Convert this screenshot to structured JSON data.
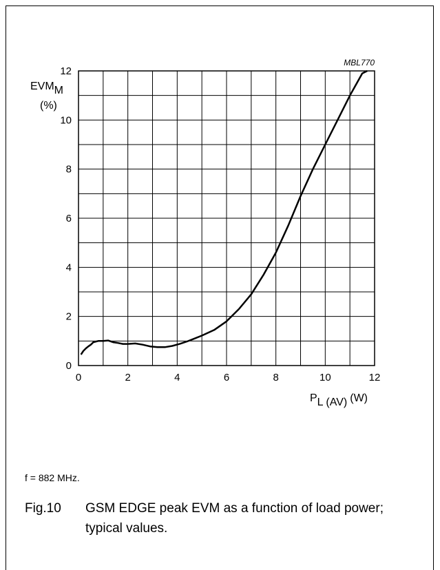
{
  "chart_data": {
    "type": "line",
    "title": "",
    "reference": "MBL770",
    "ylabel": {
      "main": "EVM",
      "sub": "M",
      "unit": "(%)"
    },
    "xlabel": {
      "main": "P",
      "sub": "L (AV)",
      "unit": "(W)"
    },
    "xlim": [
      0,
      12
    ],
    "ylim": [
      0,
      12
    ],
    "x_ticks": [
      0,
      2,
      4,
      6,
      8,
      10,
      12
    ],
    "y_ticks": [
      0,
      2,
      4,
      6,
      8,
      10,
      12
    ],
    "grid": {
      "x_step": 1,
      "y_step": 1
    },
    "series": [
      {
        "x": [
          0.1,
          0.2,
          0.3,
          0.4,
          0.5,
          0.6,
          0.8,
          1.0,
          1.2,
          1.4,
          1.6,
          1.8,
          2.0,
          2.3,
          2.6,
          2.9,
          3.2,
          3.5,
          3.8,
          4.1,
          4.4,
          4.7,
          5.0,
          5.5,
          6.0,
          6.5,
          7.0,
          7.5,
          8.0,
          8.5,
          9.0,
          9.5,
          10.0,
          10.5,
          11.0,
          11.5,
          11.7
        ],
        "y": [
          0.45,
          0.6,
          0.7,
          0.78,
          0.85,
          0.95,
          1.0,
          1.0,
          1.02,
          0.95,
          0.92,
          0.88,
          0.88,
          0.9,
          0.85,
          0.78,
          0.75,
          0.75,
          0.8,
          0.88,
          0.98,
          1.1,
          1.22,
          1.45,
          1.8,
          2.3,
          2.9,
          3.7,
          4.6,
          5.7,
          6.9,
          8.0,
          9.0,
          10.0,
          11.0,
          11.9,
          12.0
        ]
      }
    ]
  },
  "note": "f = 882 MHz.",
  "caption": {
    "number": "Fig.10",
    "text": "GSM EDGE peak EVM as a function of load power; typical values."
  }
}
